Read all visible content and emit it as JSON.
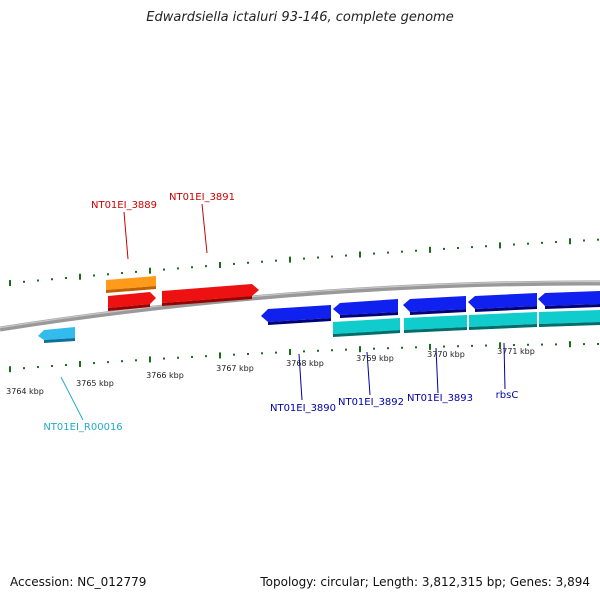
{
  "title": "Edwardsiella ictaluri 93-146, complete genome",
  "footer": {
    "accession": "Accession: NC_012779",
    "stats": "Topology: circular; Length: 3,812,315 bp; Genes: 3,894"
  },
  "colors": {
    "backbone": "#888888",
    "tick": "#1a6e1a",
    "label_red": "#cc0000",
    "label_blue": "#0000aa",
    "label_cyan": "#22aacc",
    "orange": "#ff8c00",
    "red": "#ee0000",
    "blue": "#0000dd",
    "cyan": "#11cccc",
    "lightblue": "#33bbee"
  },
  "tick_labels": [
    "3764 kbp",
    "3765 kbp",
    "3766 kbp",
    "3767 kbp",
    "3768 kbp",
    "3769 kbp",
    "3770 kbp",
    "3771 kbp"
  ],
  "gene_labels": {
    "g3889": "NT01EI_3889",
    "g3891": "NT01EI_3891",
    "g3890": "NT01EI_3890",
    "g3892": "NT01EI_3892",
    "g3893": "NT01EI_3893",
    "rbsC": "rbsC",
    "r00016": "NT01EI_R00016"
  }
}
